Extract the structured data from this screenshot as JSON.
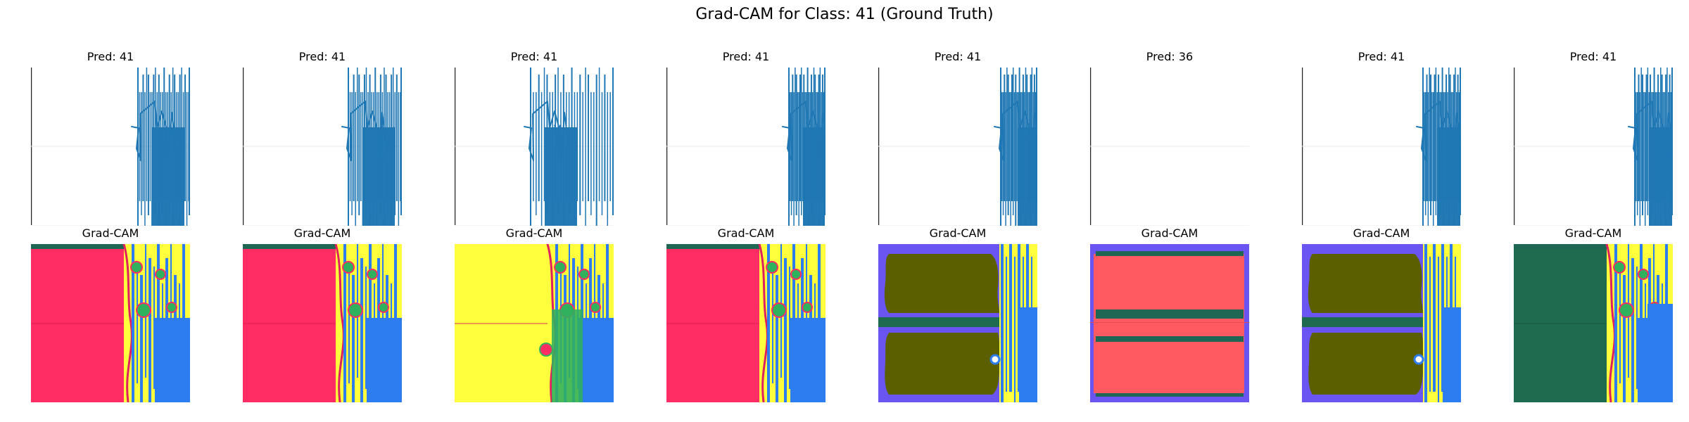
{
  "figure": {
    "title": "Grad-CAM for Class: 41 (Ground Truth)"
  },
  "chart_data": {
    "type": "figure-grid",
    "title": "Grad-CAM for Class: 41 (Ground Truth)",
    "rows": 2,
    "columns": 8,
    "grid": false,
    "panels": [
      {
        "pred_title": "Pred: 41",
        "cam_title": "Grad-CAM",
        "cam_background": "#ff2d63",
        "cam_scheme": "pink-left"
      },
      {
        "pred_title": "Pred: 41",
        "cam_title": "Grad-CAM",
        "cam_background": "#ff2d63",
        "cam_scheme": "pink-left"
      },
      {
        "pred_title": "Pred: 41",
        "cam_title": "Grad-CAM",
        "cam_background": "#ffff3d",
        "cam_scheme": "yellow-left"
      },
      {
        "pred_title": "Pred: 41",
        "cam_title": "Grad-CAM",
        "cam_background": "#ff2d63",
        "cam_scheme": "pink-left"
      },
      {
        "pred_title": "Pred: 41",
        "cam_title": "Grad-CAM",
        "cam_background": "#5b5f00",
        "cam_scheme": "olive-violet"
      },
      {
        "pred_title": "Pred: 36",
        "cam_title": "Grad-CAM",
        "cam_background": "#ff5a62",
        "cam_scheme": "coral-bands"
      },
      {
        "pred_title": "Pred: 41",
        "cam_title": "Grad-CAM",
        "cam_background": "#5b5f00",
        "cam_scheme": "olive-violet"
      },
      {
        "pred_title": "Pred: 41",
        "cam_title": "Grad-CAM",
        "cam_background": "#1f6b4f",
        "cam_scheme": "teal-left"
      }
    ],
    "colors": {
      "line": "#1f77b4",
      "axis": "#222222",
      "guide": "#e8e8e8",
      "pink": "#ff2d63",
      "yellow": "#ffff3d",
      "blue": "#2d7df0",
      "green": "#30b15e",
      "violet": "#6a55f2",
      "olive": "#5b5f00",
      "teal": "#1f6b4f",
      "coral": "#ff5a62",
      "dark_teal": "#1d6754"
    }
  }
}
